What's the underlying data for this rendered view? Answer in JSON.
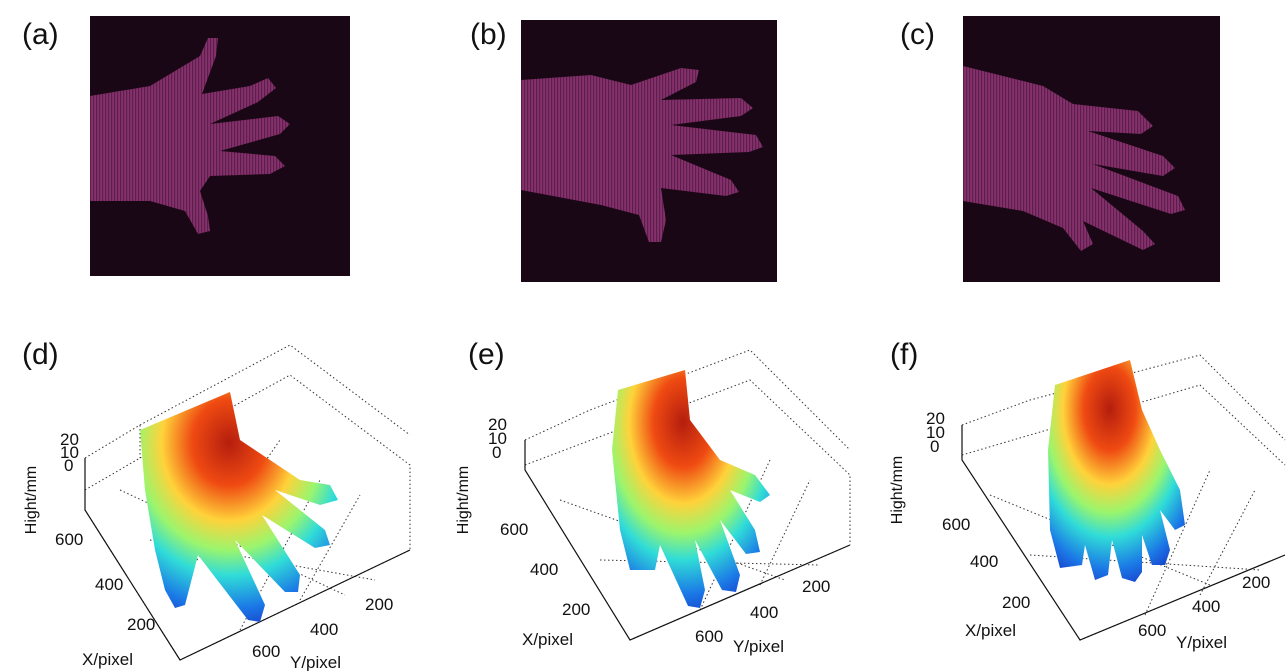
{
  "panels": {
    "a": "(a)",
    "b": "(b)",
    "c": "(c)",
    "d": "(d)",
    "e": "(e)",
    "f": "(f)"
  },
  "plots": [
    {
      "zlabel": "Hight/mm",
      "xlabel": "X/pixel",
      "ylabel": "Y/pixel",
      "zticks": [
        "20",
        "10",
        "0"
      ],
      "xticks": [
        "600",
        "400",
        "200"
      ],
      "yticks": [
        "200",
        "400",
        "600"
      ]
    },
    {
      "zlabel": "Hight/mm",
      "xlabel": "X/pixel",
      "ylabel": "Y/pixel",
      "zticks": [
        "20",
        "10",
        "0"
      ],
      "xticks": [
        "600",
        "400",
        "200"
      ],
      "yticks": [
        "200",
        "400",
        "600"
      ]
    },
    {
      "zlabel": "Hight/mm",
      "xlabel": "X/pixel",
      "ylabel": "Y/pixel",
      "zticks": [
        "20",
        "10",
        "0"
      ],
      "xticks": [
        "600",
        "400",
        "200"
      ],
      "yticks": [
        "200",
        "400",
        "600"
      ]
    }
  ],
  "colors": {
    "photo_bg": "#1a0716",
    "hand_fill": "#8a2f6e",
    "jet_low": "#1a3fd6",
    "jet_mid": "#35e6d5",
    "jet_high": "#e02a10"
  }
}
